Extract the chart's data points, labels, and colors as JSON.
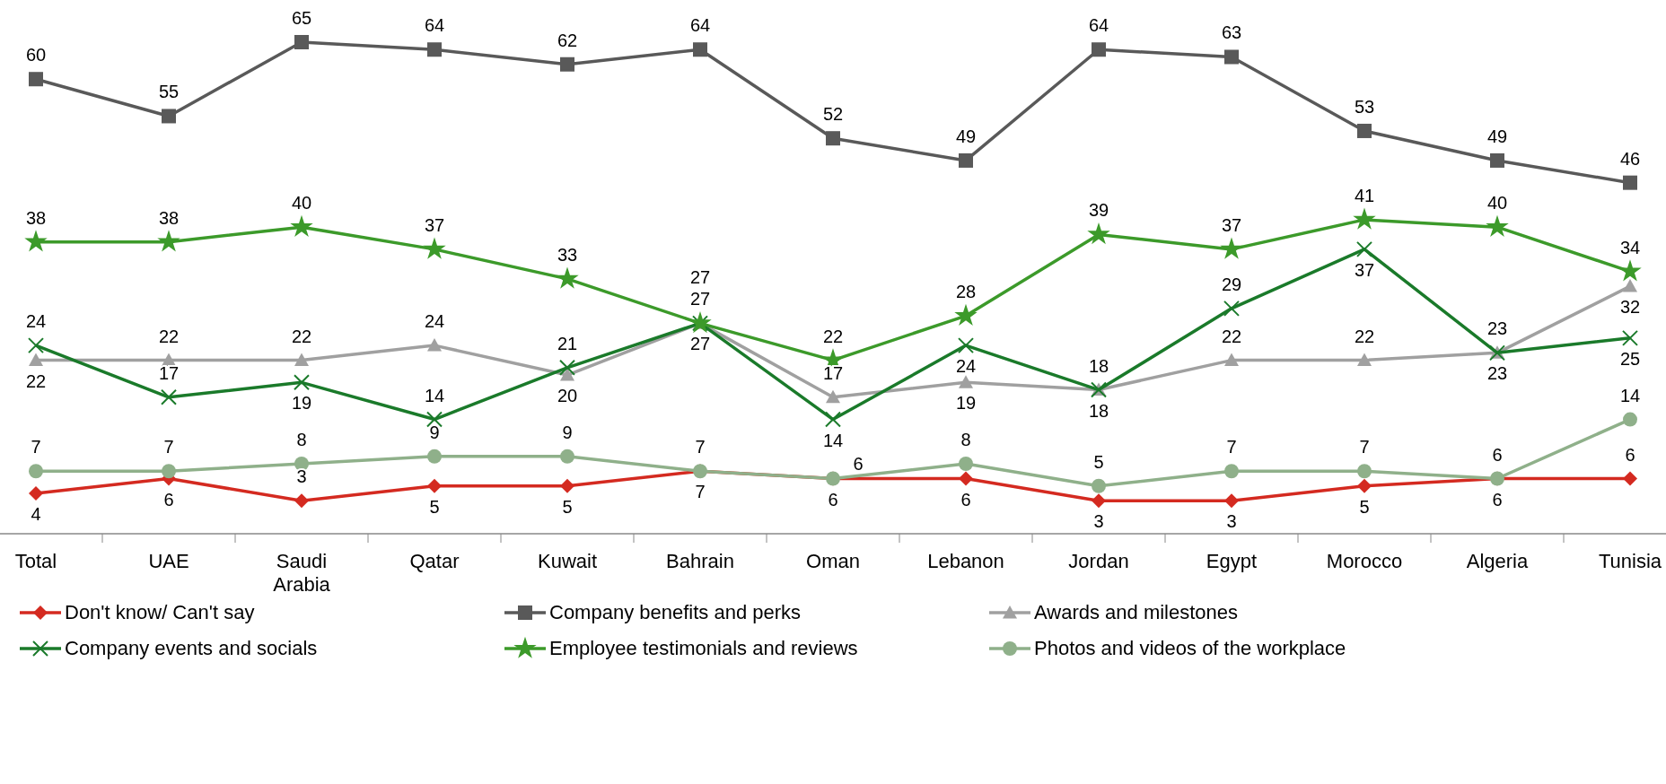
{
  "chart_data": {
    "type": "line",
    "categories": [
      "Total",
      "UAE",
      "Saudi Arabia",
      "Qatar",
      "Kuwait",
      "Bahrain",
      "Oman",
      "Lebanon",
      "Jordan",
      "Egypt",
      "Morocco",
      "Algeria",
      "Tunisia"
    ],
    "series": [
      {
        "name": "Don't know/ Can't say",
        "color": "#d42a20",
        "marker": "diamond",
        "values": [
          4,
          6,
          3,
          5,
          5,
          7,
          6,
          6,
          3,
          3,
          5,
          6,
          6
        ]
      },
      {
        "name": "Company benefits and perks",
        "color": "#595959",
        "marker": "square",
        "values": [
          60,
          55,
          65,
          64,
          62,
          64,
          52,
          49,
          64,
          63,
          53,
          49,
          46
        ]
      },
      {
        "name": "Awards and milestones",
        "color": "#a0a0a0",
        "marker": "triangle",
        "values": [
          22,
          22,
          22,
          24,
          20,
          27,
          17,
          19,
          18,
          22,
          22,
          23,
          32
        ]
      },
      {
        "name": "Company events and socials",
        "color": "#1a7a2a",
        "marker": "cross",
        "values": [
          24,
          17,
          19,
          14,
          21,
          27,
          14,
          24,
          18,
          29,
          37,
          23,
          25
        ]
      },
      {
        "name": "Employee testimonials and reviews",
        "color": "#3c9a2a",
        "marker": "star",
        "values": [
          38,
          38,
          40,
          37,
          33,
          27,
          22,
          28,
          39,
          37,
          41,
          40,
          34
        ]
      },
      {
        "name": "Photos and videos of the workplace",
        "color": "#8fb08a",
        "marker": "circle",
        "values": [
          7,
          7,
          8,
          9,
          9,
          7,
          6,
          8,
          5,
          7,
          7,
          6,
          14
        ]
      }
    ],
    "data_labels": true,
    "legend": "bottom",
    "grid": false
  }
}
